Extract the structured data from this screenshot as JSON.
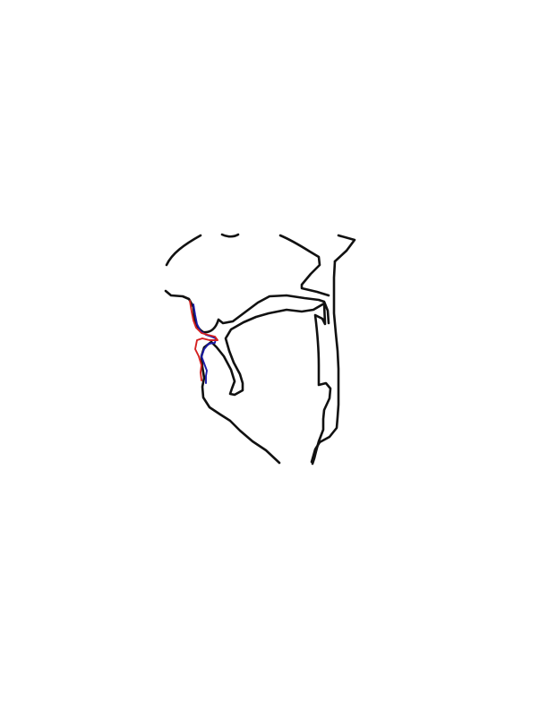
{
  "diagram": {
    "kind": "vocal-tract-midsagittal-tracing",
    "colors": {
      "anatomy": "#111111",
      "contour_blue": "#1a1aa8",
      "contour_red": "#d42020",
      "background": "#ffffff"
    },
    "contours": [
      {
        "name": "nasal-cavity-outline",
        "color_key": "anatomy"
      },
      {
        "name": "palate-and-pharynx-wall",
        "color_key": "anatomy"
      },
      {
        "name": "tongue-outline",
        "color_key": "anatomy"
      },
      {
        "name": "jaw-and-chin-outline",
        "color_key": "anatomy"
      },
      {
        "name": "spine-outline",
        "color_key": "anatomy"
      },
      {
        "name": "lip-contour-blue",
        "color_key": "contour_blue"
      },
      {
        "name": "lip-contour-red",
        "color_key": "contour_red"
      }
    ]
  }
}
